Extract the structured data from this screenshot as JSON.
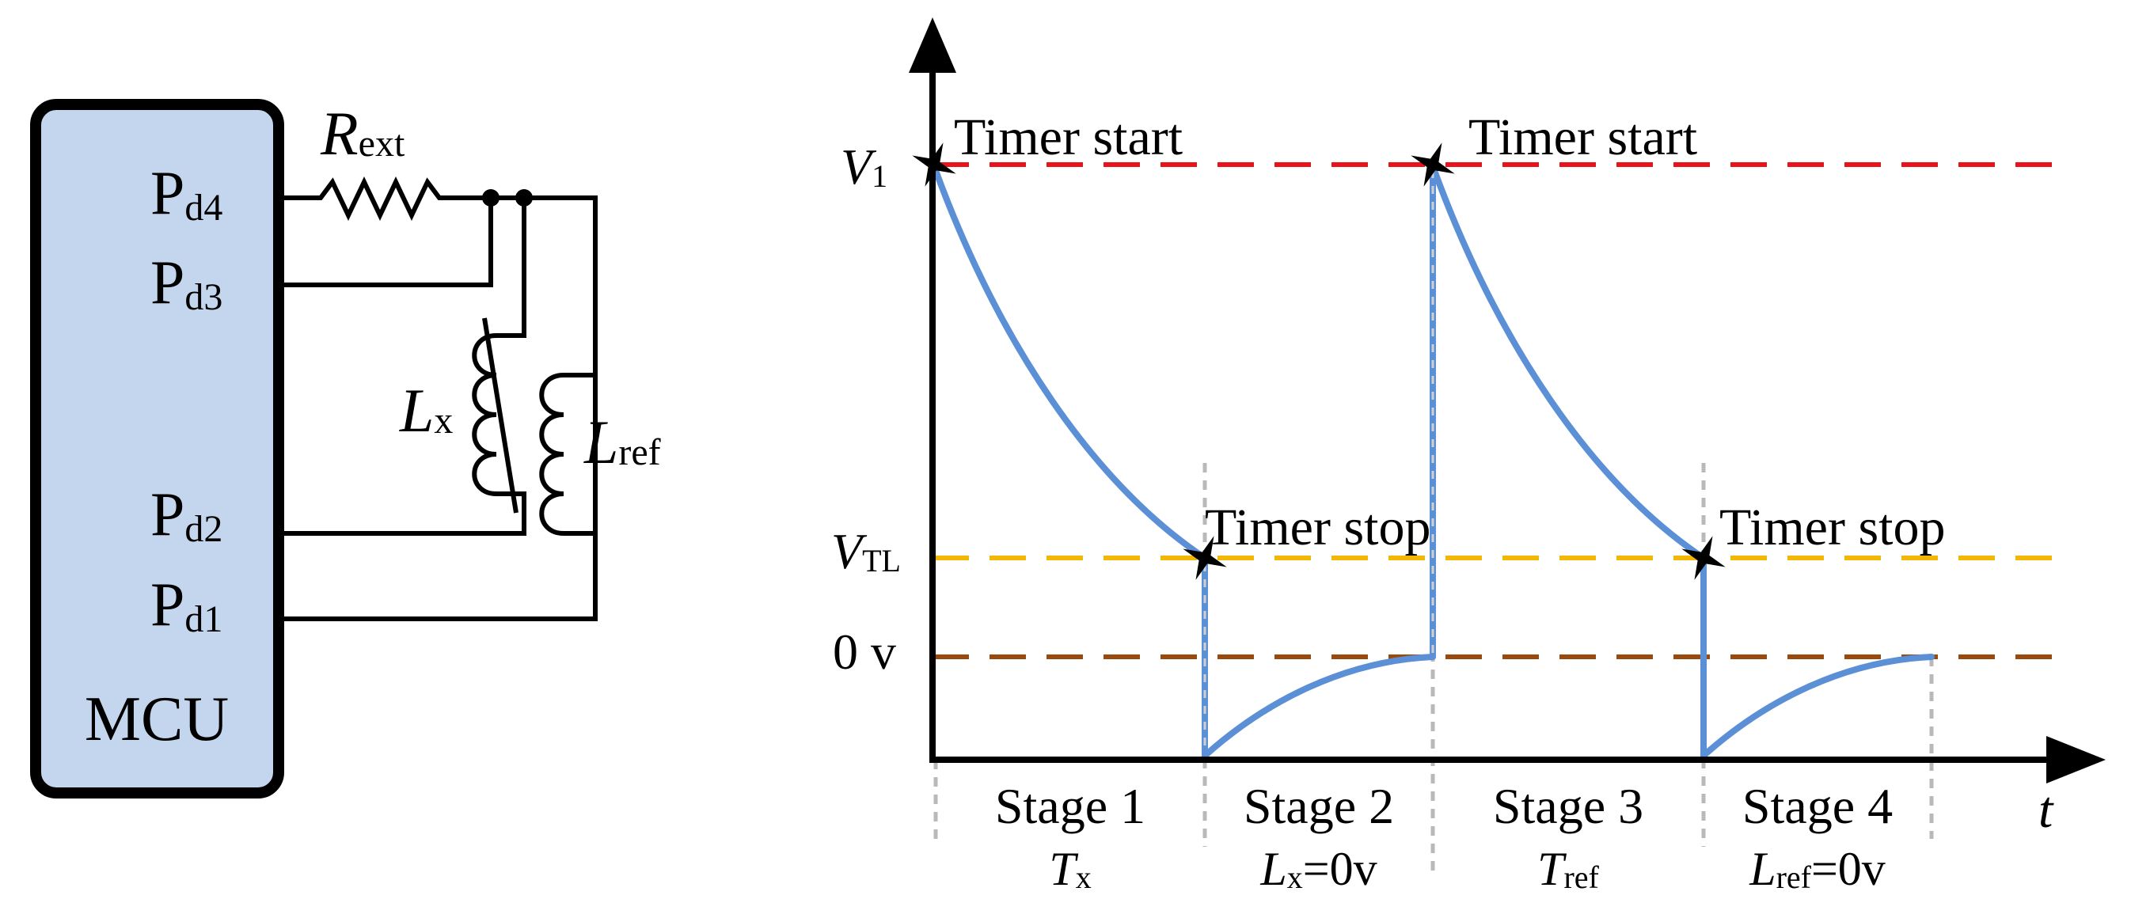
{
  "circuit": {
    "mcu_label": "MCU",
    "pins": [
      {
        "main": "P",
        "sub": "d4"
      },
      {
        "main": "P",
        "sub": "d3"
      },
      {
        "main": "P",
        "sub": "d2"
      },
      {
        "main": "P",
        "sub": "d1"
      }
    ],
    "rext": {
      "main": "R",
      "sub": "ext"
    },
    "lx": {
      "main": "L",
      "sub": "x"
    },
    "lref": {
      "main": "L",
      "sub": "ref"
    },
    "colors": {
      "mcu_fill": "#c4d6ee",
      "wire": "#000000"
    }
  },
  "timing": {
    "x_axis_label": "t",
    "y_levels": [
      {
        "main": "V",
        "sub": "1",
        "color": "#e8141b",
        "level": "V1"
      },
      {
        "main": "V",
        "sub": "TL",
        "color": "#f2b705",
        "level": "VTL"
      },
      {
        "main": "0 v",
        "sub": "",
        "color": "#9a4a0c",
        "level": "0v"
      }
    ],
    "events": [
      {
        "label": "Timer start",
        "stage": 1,
        "at": "start"
      },
      {
        "label": "Timer stop",
        "stage": 1,
        "at": "end"
      },
      {
        "label": "Timer start",
        "stage": 3,
        "at": "start"
      },
      {
        "label": "Timer stop",
        "stage": 3,
        "at": "end"
      }
    ],
    "stages": [
      {
        "label": "Stage 1",
        "sub_main": "T",
        "sub_sub": "x",
        "sub_tail": ""
      },
      {
        "label": "Stage 2",
        "sub_main": "L",
        "sub_sub": "x",
        "sub_tail": "=0v"
      },
      {
        "label": "Stage 3",
        "sub_main": "T",
        "sub_sub": "ref",
        "sub_tail": ""
      },
      {
        "label": "Stage 4",
        "sub_main": "L",
        "sub_sub": "ref",
        "sub_tail": "=0v"
      }
    ],
    "curve_color": "#5b8fd6"
  }
}
